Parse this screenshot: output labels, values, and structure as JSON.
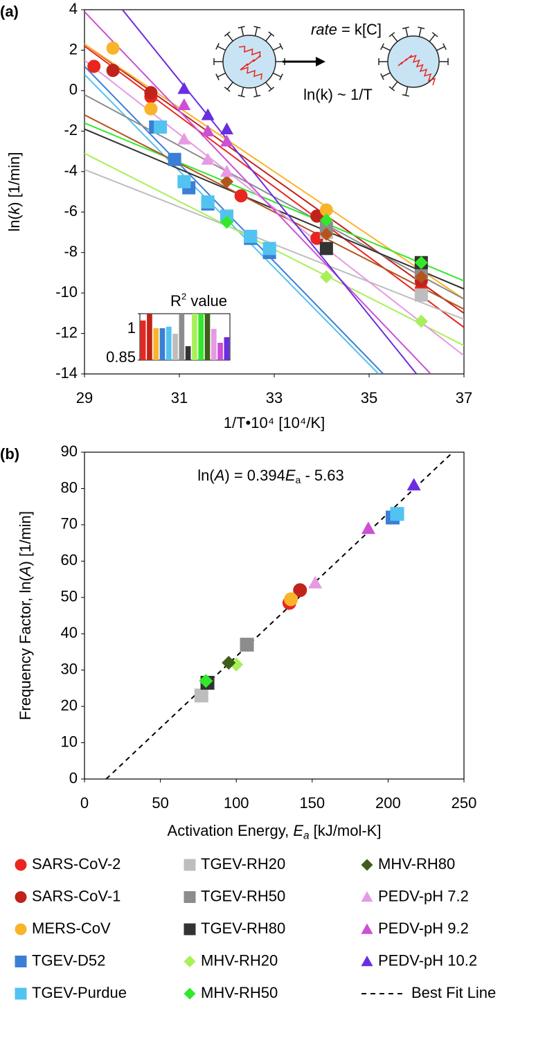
{
  "chart_data": [
    {
      "type": "scatter",
      "panel_label": "(a)",
      "xlabel": [
        "1/T•10⁴  [10⁴/K]"
      ],
      "ylabel": [
        "ln(",
        {
          "text": "k",
          "style": "italic"
        },
        ")  [1/min]"
      ],
      "annotations": [
        [
          {
            "text": "rate",
            "style": "italic"
          },
          " = k[C]"
        ],
        [
          "ln(k) ~ 1/T"
        ]
      ],
      "xlim": [
        29,
        37
      ],
      "ylim": [
        -14,
        4
      ],
      "xticks": [
        29,
        31,
        33,
        35,
        37
      ],
      "yticks": [
        4,
        2,
        0,
        -2,
        -4,
        -6,
        -8,
        -10,
        -12,
        -14
      ],
      "series": [
        {
          "color": "#e8261f",
          "marker": "circle",
          "x": [
            29.2,
            30.4,
            32.3,
            33.9,
            36.1
          ],
          "y": [
            1.2,
            -0.3,
            -5.2,
            -7.3,
            -9.8
          ],
          "fit_x": [
            29,
            37
          ],
          "fit_y": [
            2.2,
            -11.7
          ]
        },
        {
          "color": "#c0231b",
          "marker": "circle",
          "x": [
            29.6,
            30.4,
            33.9,
            36.1
          ],
          "y": [
            1.0,
            -0.1,
            -6.2,
            -9.4
          ],
          "fit_x": [
            29,
            37
          ],
          "fit_y": [
            2.3,
            -11.0
          ]
        },
        {
          "color": "#f9b42a",
          "marker": "circle",
          "x": [
            29.6,
            30.4,
            34.1
          ],
          "y": [
            2.1,
            -0.9,
            -5.9
          ],
          "fit_x": [
            29,
            37
          ],
          "fit_y": [
            2.3,
            -10.3
          ]
        },
        {
          "color": "#3a7fd5",
          "marker": "square",
          "x": [
            30.5,
            30.9,
            31.2,
            31.6,
            32.5,
            32.9
          ],
          "y": [
            -1.8,
            -3.4,
            -4.8,
            -5.6,
            -7.3,
            -8.0
          ],
          "fit_x": [
            29,
            35.3
          ],
          "fit_y": [
            1.2,
            -14
          ]
        },
        {
          "color": "#52c3f1",
          "marker": "square",
          "x": [
            30.6,
            31.1,
            31.6,
            32.0,
            32.5,
            32.9
          ],
          "y": [
            -1.8,
            -4.5,
            -5.5,
            -6.2,
            -7.2,
            -7.8
          ],
          "fit_x": [
            29,
            35.2
          ],
          "fit_y": [
            0.8,
            -14
          ]
        },
        {
          "color": "#bdbdbd",
          "marker": "square",
          "x": [
            34.1,
            36.1
          ],
          "y": [
            -7.0,
            -10.1
          ],
          "fit_x": [
            29,
            37
          ],
          "fit_y": [
            -3.9,
            -11.3
          ]
        },
        {
          "color": "#8c8c8c",
          "marker": "square",
          "x": [
            34.1,
            36.1
          ],
          "y": [
            -6.8,
            -9.0
          ],
          "fit_x": [
            29,
            37
          ],
          "fit_y": [
            -0.2,
            -10.3
          ]
        },
        {
          "color": "#333333",
          "marker": "square",
          "x": [
            34.1,
            36.1
          ],
          "y": [
            -7.8,
            -8.5
          ],
          "fit_x": [
            29,
            37
          ],
          "fit_y": [
            -1.9,
            -9.8
          ]
        },
        {
          "color": "#a8f05a",
          "marker": "diamond",
          "x": [
            32.0,
            34.1,
            36.1
          ],
          "y": [
            -6.5,
            -9.2,
            -11.4
          ],
          "fit_x": [
            29,
            37
          ],
          "fit_y": [
            -3.1,
            -12.6
          ]
        },
        {
          "color": "#33e82c",
          "marker": "diamond",
          "x": [
            32.0,
            34.1,
            36.1
          ],
          "y": [
            -6.5,
            -6.4,
            -8.5
          ],
          "fit_x": [
            29,
            37
          ],
          "fit_y": [
            -1.6,
            -9.4
          ]
        },
        {
          "color": "#b3541e",
          "marker": "diamond",
          "x": [
            32.0,
            34.1,
            36.1
          ],
          "y": [
            -4.5,
            -7.1,
            -9.2
          ],
          "fit_x": [
            29,
            37
          ],
          "fit_y": [
            -1.2,
            -10.8
          ]
        },
        {
          "color": "#e59ae3",
          "marker": "triangle",
          "x": [
            31.1,
            31.6,
            32.0
          ],
          "y": [
            -2.4,
            -3.4,
            -4.0
          ],
          "fit_x": [
            29,
            37
          ],
          "fit_y": [
            1.5,
            -13.1
          ]
        },
        {
          "color": "#cc4fd6",
          "marker": "triangle",
          "x": [
            31.1,
            31.6,
            32.0
          ],
          "y": [
            -0.7,
            -2.0,
            -2.5
          ],
          "fit_x": [
            29,
            36.3
          ],
          "fit_y": [
            3.9,
            -14
          ]
        },
        {
          "color": "#6a2ee0",
          "marker": "triangle",
          "x": [
            31.1,
            31.6,
            32.0
          ],
          "y": [
            0.1,
            -1.2,
            -1.9
          ],
          "fit_x": [
            29.8,
            36.0
          ],
          "fit_y": [
            4,
            -14
          ]
        }
      ]
    },
    {
      "type": "bar",
      "title": [
        "R",
        {
          "text": "2",
          "style": "sup"
        },
        " value"
      ],
      "categories": [
        null,
        null,
        null,
        null,
        null,
        null,
        null,
        null,
        null,
        null,
        null,
        null,
        null,
        null
      ],
      "values": [
        0.978,
        1.0,
        0.953,
        0.953,
        0.958,
        0.935,
        1.0,
        0.895,
        1.0,
        1.0,
        1.0,
        0.951,
        0.906,
        0.924
      ],
      "colors": [
        "#e8261f",
        "#c0231b",
        "#f9b42a",
        "#3a7fd5",
        "#52c3f1",
        "#bdbdbd",
        "#8c8c8c",
        "#333333",
        "#a8f05a",
        "#33e82c",
        "#3f5e1a",
        "#e59ae3",
        "#cc4fd6",
        "#6a2ee0"
      ],
      "ylim": [
        0.85,
        1
      ],
      "yticks": [
        0.85,
        1
      ]
    },
    {
      "type": "scatter",
      "panel_label": "(b)",
      "annotation": [
        "ln(",
        {
          "text": "A",
          "style": "italic"
        },
        ") = 0.394",
        {
          "text": "E",
          "style": "italic"
        },
        {
          "text": "a",
          "style": "sub"
        },
        " - 5.63"
      ],
      "xlabel": [
        "Activation Energy, ",
        {
          "text": "E",
          "style": "italic"
        },
        {
          "text": "a",
          "style": "sub-italic"
        },
        " [kJ/mol-K]"
      ],
      "ylabel": [
        "Frequency Factor, ln(",
        {
          "text": "A",
          "style": "italic"
        },
        ") [1/min]"
      ],
      "xlim": [
        0,
        250
      ],
      "ylim": [
        0,
        90
      ],
      "xticks": [
        0,
        50,
        100,
        150,
        200,
        250
      ],
      "yticks": [
        0,
        10,
        20,
        30,
        40,
        50,
        60,
        70,
        80,
        90
      ],
      "series": [
        {
          "name": "SARS-CoV-2",
          "color": "#e8261f",
          "marker": "circle",
          "x": [
            135
          ],
          "y": [
            48.5
          ]
        },
        {
          "name": "SARS-CoV-1",
          "color": "#c0231b",
          "marker": "circle",
          "x": [
            142
          ],
          "y": [
            52
          ]
        },
        {
          "name": "MERS-CoV",
          "color": "#f9b42a",
          "marker": "circle",
          "x": [
            136
          ],
          "y": [
            49.5
          ]
        },
        {
          "name": "TGEV-D52",
          "color": "#3a7fd5",
          "marker": "square",
          "x": [
            203
          ],
          "y": [
            72
          ]
        },
        {
          "name": "TGEV-Purdue",
          "color": "#52c3f1",
          "marker": "square",
          "x": [
            206
          ],
          "y": [
            73
          ]
        },
        {
          "name": "TGEV-RH20",
          "color": "#bdbdbd",
          "marker": "square",
          "x": [
            77
          ],
          "y": [
            23
          ]
        },
        {
          "name": "TGEV-RH50",
          "color": "#8c8c8c",
          "marker": "square",
          "x": [
            107
          ],
          "y": [
            37
          ]
        },
        {
          "name": "TGEV-RH80",
          "color": "#333333",
          "marker": "square",
          "x": [
            81
          ],
          "y": [
            26.5
          ]
        },
        {
          "name": "MHV-RH20",
          "color": "#a8f05a",
          "marker": "diamond",
          "x": [
            100
          ],
          "y": [
            31.5
          ]
        },
        {
          "name": "MHV-RH50",
          "color": "#33e82c",
          "marker": "diamond",
          "x": [
            80
          ],
          "y": [
            27
          ]
        },
        {
          "name": "MHV-RH80",
          "color": "#3f5e1a",
          "marker": "diamond",
          "x": [
            95
          ],
          "y": [
            32
          ]
        },
        {
          "name": "PEDV-pH 7.2",
          "color": "#e59ae3",
          "marker": "triangle",
          "x": [
            152
          ],
          "y": [
            54
          ]
        },
        {
          "name": "PEDV-pH 9.2",
          "color": "#cc4fd6",
          "marker": "triangle",
          "x": [
            187
          ],
          "y": [
            69
          ]
        },
        {
          "name": "PEDV-pH 10.2",
          "color": "#6a2ee0",
          "marker": "triangle",
          "x": [
            217
          ],
          "y": [
            81
          ]
        },
        {
          "name": "Best Fit Line",
          "color": "#000000",
          "marker": "dash",
          "x": [
            14.3,
            242.7
          ],
          "y": [
            0,
            90
          ]
        }
      ]
    }
  ]
}
